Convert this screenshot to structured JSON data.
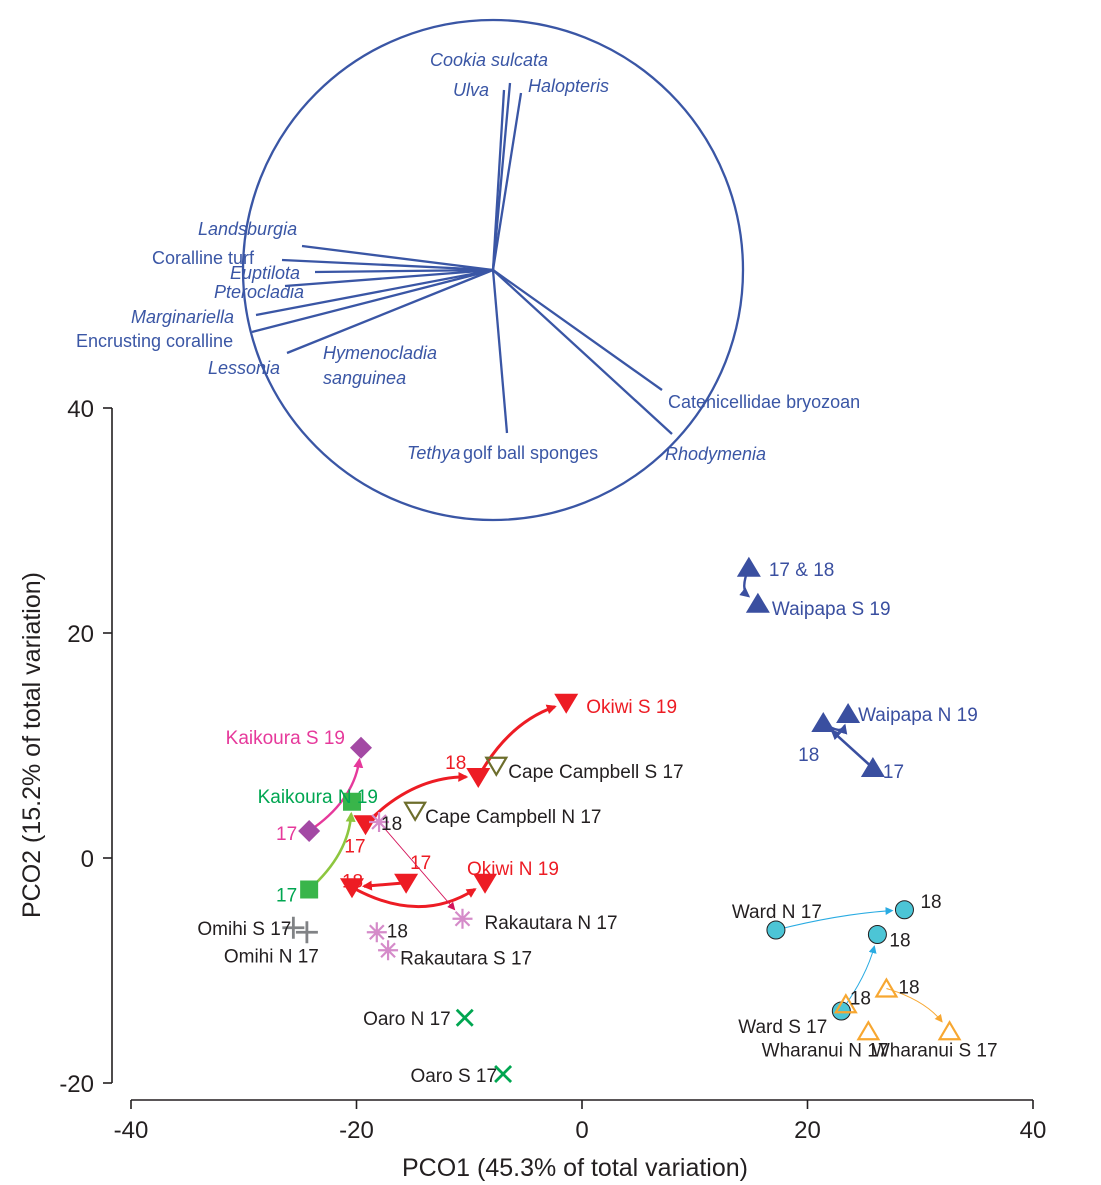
{
  "chart_data": {
    "type": "scatter",
    "xlabel": "PCO1 (45.3% of total variation)",
    "ylabel": "PCO2 (15.2% of total variation)",
    "xlim": [
      -40,
      40
    ],
    "ylim": [
      -20,
      40
    ],
    "x_ticks": [
      "-40",
      "-20",
      "0",
      "20",
      "40"
    ],
    "y_ticks": [
      "-20",
      "0",
      "20",
      "40"
    ],
    "vector_overlay": {
      "type": "correlation circle",
      "vectors": [
        {
          "label": "Cookia sulcata",
          "italic": true
        },
        {
          "label": "Ulva",
          "italic": true
        },
        {
          "label": "Halopteris",
          "italic": true
        },
        {
          "label": "Landsburgia",
          "italic": true
        },
        {
          "label": "Coralline turf",
          "italic": false
        },
        {
          "label": "Euptilota",
          "italic": true
        },
        {
          "label": "Pterocladia",
          "italic": true
        },
        {
          "label": "Marginariella",
          "italic": true
        },
        {
          "label": "Encrusting coralline",
          "italic": false
        },
        {
          "label": "Lessonia",
          "italic": true
        },
        {
          "label": "Hymenocladia",
          "italic": true
        },
        {
          "label": "sanguinea",
          "italic": true
        },
        {
          "label": "Catenicellidae bryozoan",
          "italic": false
        },
        {
          "label": "Tethya",
          "italic": true
        },
        {
          "label": "golf ball sponges",
          "italic": false
        },
        {
          "label": "Rhodymenia",
          "italic": true
        }
      ]
    },
    "series": [
      {
        "site": "Waipapa S",
        "color": "#3a4fa0",
        "marker": "triangle-up",
        "points": [
          {
            "x": 14.8,
            "y": 25.8,
            "label": "17 & 18"
          },
          {
            "x": 15.6,
            "y": 22.6,
            "label": "Waipapa S 19"
          }
        ]
      },
      {
        "site": "Waipapa N",
        "color": "#3a4fa0",
        "marker": "triangle-up",
        "points": [
          {
            "x": 25.8,
            "y": 8.0,
            "label": "17"
          },
          {
            "x": 21.4,
            "y": 12.0,
            "label": "18"
          },
          {
            "x": 23.6,
            "y": 12.8,
            "label": "Waipapa N 19"
          }
        ]
      },
      {
        "site": "Okiwi S",
        "color": "#ed1c24",
        "marker": "triangle-down",
        "points": [
          {
            "x": -19.2,
            "y": 3.0,
            "label": "17"
          },
          {
            "x": -9.2,
            "y": 7.2,
            "label": "18"
          },
          {
            "x": -1.4,
            "y": 13.8,
            "label": "Okiwi S 19"
          }
        ]
      },
      {
        "site": "Okiwi N",
        "color": "#ed1c24",
        "marker": "triangle-down",
        "points": [
          {
            "x": -15.6,
            "y": -2.2,
            "label": "17"
          },
          {
            "x": -20.4,
            "y": -2.6,
            "label": "18"
          },
          {
            "x": -8.6,
            "y": -2.2,
            "label": "Okiwi N 19"
          }
        ]
      },
      {
        "site": "Kaikoura S",
        "color": "#a349a4",
        "label_color": "#e6399b",
        "marker": "diamond",
        "points": [
          {
            "x": -24.2,
            "y": 2.4,
            "label": "17"
          },
          {
            "x": -19.6,
            "y": 9.8,
            "label": "Kaikoura S 19"
          }
        ]
      },
      {
        "site": "Kaikoura N",
        "color": "#39b54a",
        "label_color": "#00a651",
        "marker": "square",
        "points": [
          {
            "x": -24.2,
            "y": -2.8,
            "label": "17"
          },
          {
            "x": -20.4,
            "y": 5.0,
            "label": "Kaikoura N 19"
          }
        ]
      },
      {
        "site": "Cape Campbell S",
        "color": "#6d6e2c",
        "marker": "triangle-down-open",
        "points": [
          {
            "x": -7.6,
            "y": 8.2,
            "label": "Cape Campbell S 17"
          }
        ]
      },
      {
        "site": "Cape Campbell N",
        "color": "#6d6e2c",
        "marker": "triangle-down-open",
        "points": [
          {
            "x": -14.8,
            "y": 4.2,
            "label": "Cape Campbell N 17"
          }
        ]
      },
      {
        "site": "Rakautara N",
        "color": "#d58bc9",
        "marker": "asterisk",
        "points": [
          {
            "x": -18.0,
            "y": 3.2,
            "label": "18"
          },
          {
            "x": -10.6,
            "y": -5.4,
            "label": "Rakautara N 17"
          }
        ]
      },
      {
        "site": "Rakautara S",
        "color": "#d58bc9",
        "marker": "asterisk",
        "points": [
          {
            "x": -18.2,
            "y": -6.6,
            "label": "18"
          },
          {
            "x": -17.2,
            "y": -8.2,
            "label": "Rakautara S 17"
          }
        ]
      },
      {
        "site": "Omihi S",
        "color": "#808285",
        "marker": "plus",
        "points": [
          {
            "x": -25.6,
            "y": -6.2,
            "label": "Omihi S 17"
          }
        ]
      },
      {
        "site": "Omihi N",
        "color": "#808285",
        "marker": "plus",
        "points": [
          {
            "x": -24.4,
            "y": -6.6,
            "label": "Omihi N 17"
          }
        ]
      },
      {
        "site": "Oaro N",
        "color": "#00a651",
        "marker": "cross",
        "points": [
          {
            "x": -10.4,
            "y": -14.2,
            "label": "Oaro N 17"
          }
        ]
      },
      {
        "site": "Oaro S",
        "color": "#00a651",
        "marker": "cross",
        "points": [
          {
            "x": -7.0,
            "y": -19.2,
            "label": "Oaro S 17"
          }
        ]
      },
      {
        "site": "Ward N",
        "color": "#4cc5d6",
        "marker": "circle",
        "points": [
          {
            "x": 17.2,
            "y": -6.4,
            "label": "Ward N 17"
          },
          {
            "x": 28.6,
            "y": -4.6,
            "label": "18"
          }
        ]
      },
      {
        "site": "Ward S",
        "color": "#4cc5d6",
        "marker": "circle",
        "points": [
          {
            "x": 23.0,
            "y": -13.6,
            "label": "Ward S 17"
          },
          {
            "x": 26.2,
            "y": -6.8,
            "label": "18"
          }
        ]
      },
      {
        "site": "Wharanui N",
        "color": "#f7a731",
        "marker": "triangle-up-open",
        "points": [
          {
            "x": 25.4,
            "y": -15.4,
            "label": "Wharanui N 17"
          },
          {
            "x": 23.4,
            "y": -13.0,
            "label": "18"
          }
        ]
      },
      {
        "site": "Wharanui S",
        "color": "#f7a731",
        "marker": "triangle-up-open",
        "points": [
          {
            "x": 32.6,
            "y": -15.4,
            "label": "Wharanui S 17"
          },
          {
            "x": 27.0,
            "y": -11.6,
            "label": "18"
          }
        ]
      }
    ]
  }
}
